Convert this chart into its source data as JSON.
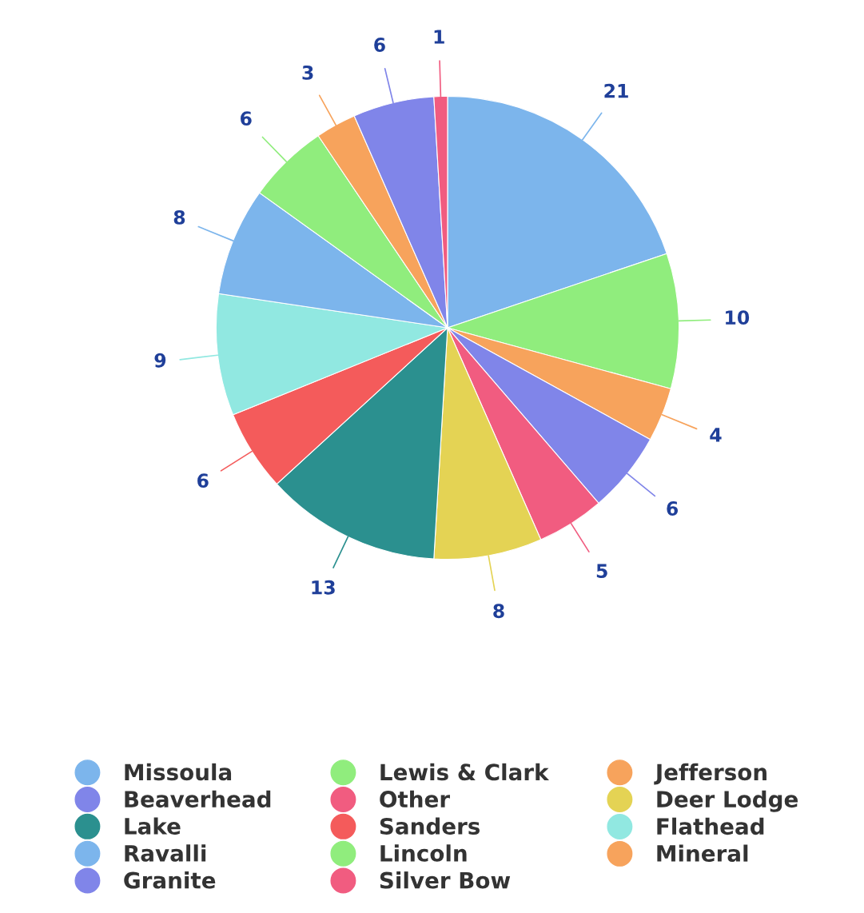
{
  "chart_data": {
    "type": "pie",
    "categories": [
      "Missoula",
      "Lewis & Clark",
      "Jefferson",
      "Beaverhead",
      "Other",
      "Deer Lodge",
      "Lake",
      "Sanders",
      "Flathead",
      "Ravalli",
      "Lincoln",
      "Mineral",
      "Granite",
      "Silver Bow"
    ],
    "values": [
      21,
      10,
      4,
      6,
      5,
      8,
      13,
      6,
      9,
      8,
      6,
      3,
      6,
      1
    ],
    "colors": [
      "#7cb5ec",
      "#90ed7d",
      "#f7a35c",
      "#8085e9",
      "#f15c80",
      "#e4d354",
      "#2b908f",
      "#f45b5b",
      "#91e8e1",
      "#7cb5ec",
      "#90ed7d",
      "#f7a35c",
      "#8085e9",
      "#f15c80"
    ],
    "data_labels": true,
    "legend": "bottom"
  }
}
